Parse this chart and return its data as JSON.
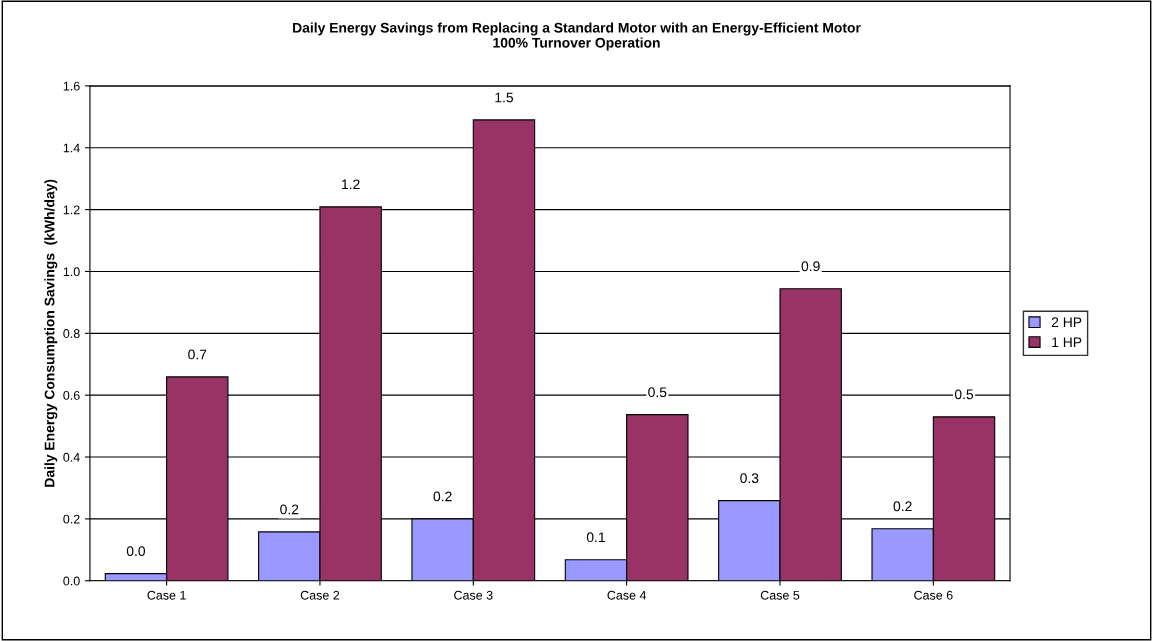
{
  "chart_data": {
    "type": "bar",
    "title": "Daily Energy Savings from Replacing a Standard Motor with an Energy-Efficient Motor\n100% Turnover Operation",
    "ylabel": "Daily Energy Consumption Savings  (kWh/day)",
    "categories": [
      "Case 1",
      "Case 2",
      "Case 3",
      "Case 4",
      "Case 5",
      "Case 6"
    ],
    "series": [
      {
        "name": "2 HP",
        "color": "#9999ff",
        "values": [
          0.023,
          0.158,
          0.2,
          0.068,
          0.259,
          0.168
        ],
        "value_labels": [
          "0.0",
          "0.2",
          "0.2",
          "0.1",
          "0.3",
          "0.2"
        ]
      },
      {
        "name": "1 HP",
        "color": "#993366",
        "values": [
          0.659,
          1.209,
          1.49,
          0.537,
          0.944,
          0.53
        ],
        "value_labels": [
          "0.7",
          "1.2",
          "1.5",
          "0.5",
          "0.9",
          "0.5"
        ]
      }
    ],
    "ylim": [
      0,
      1.6
    ],
    "yticks": [
      {
        "value": 0,
        "label": "0.0"
      },
      {
        "value": 0.2,
        "label": "0.2"
      },
      {
        "value": 0.4,
        "label": "0.4"
      },
      {
        "value": 0.6,
        "label": "0.6"
      },
      {
        "value": 0.8,
        "label": "0.8"
      },
      {
        "value": 1.0,
        "label": "1.0"
      },
      {
        "value": 1.2,
        "label": "1.2"
      },
      {
        "value": 1.4,
        "label": "1.4"
      },
      {
        "value": 1.6,
        "label": "1.6"
      }
    ],
    "grid": "y",
    "legend": "right"
  }
}
